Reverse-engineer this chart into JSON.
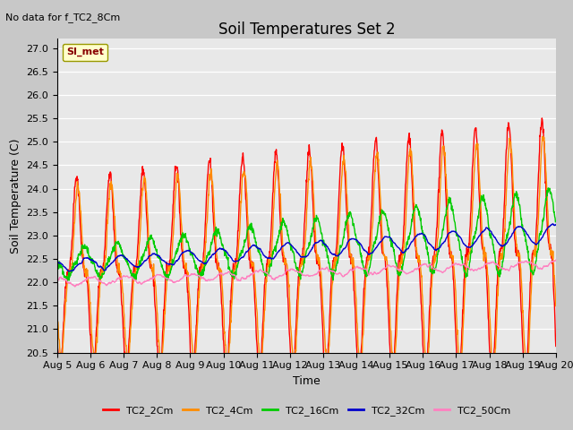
{
  "title": "Soil Temperatures Set 2",
  "top_left_note": "No data for f_TC2_8Cm",
  "ylabel": "Soil Temperature (C)",
  "xlabel": "Time",
  "ylim": [
    20.5,
    27.2
  ],
  "n_days": 15,
  "x_tick_labels": [
    "Aug 5",
    "Aug 6",
    "Aug 7",
    "Aug 8",
    "Aug 9",
    "Aug 10",
    "Aug 11",
    "Aug 12",
    "Aug 13",
    "Aug 14",
    "Aug 15",
    "Aug 16",
    "Aug 17",
    "Aug 18",
    "Aug 19",
    "Aug 20"
  ],
  "legend_label": "SI_met",
  "legend_entries": [
    "TC2_2Cm",
    "TC2_4Cm",
    "TC2_16Cm",
    "TC2_32Cm",
    "TC2_50Cm"
  ],
  "colors": {
    "TC2_2Cm": "#ff0000",
    "TC2_4Cm": "#ff8c00",
    "TC2_16Cm": "#00cc00",
    "TC2_32Cm": "#0000cc",
    "TC2_50Cm": "#ff80c0"
  },
  "fig_bg": "#c8c8c8",
  "plot_bg": "#e8e8e8",
  "title_fontsize": 12,
  "label_fontsize": 9,
  "tick_fontsize": 8,
  "linewidth": 1.0
}
